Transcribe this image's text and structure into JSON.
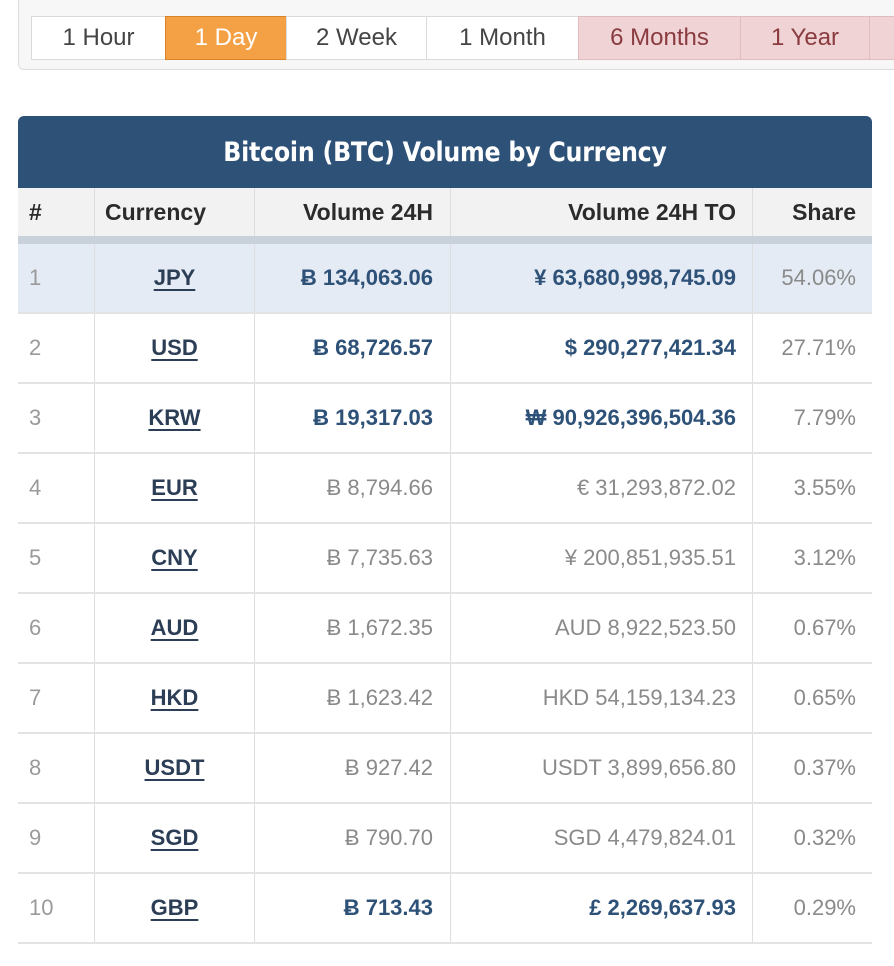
{
  "range_tabs": [
    {
      "label": "1 Hour",
      "state": "normal"
    },
    {
      "label": "1 Day",
      "state": "active"
    },
    {
      "label": "2 Week",
      "state": "normal"
    },
    {
      "label": "1 Month",
      "state": "normal"
    },
    {
      "label": "6 Months",
      "state": "disabled"
    },
    {
      "label": "1 Year",
      "state": "disabled"
    }
  ],
  "table": {
    "title": "Bitcoin (BTC) Volume by Currency",
    "headers": {
      "num": "#",
      "currency": "Currency",
      "volume": "Volume 24H",
      "volume_to": "Volume 24H TO",
      "share": "Share"
    },
    "rows": [
      {
        "num": "1",
        "currency": "JPY",
        "volume": "Ƀ 134,063.06",
        "volume_to": "¥ 63,680,998,745.09",
        "share": "54.06%",
        "emphasis": true,
        "highlight": true
      },
      {
        "num": "2",
        "currency": "USD",
        "volume": "Ƀ 68,726.57",
        "volume_to": "$ 290,277,421.34",
        "share": "27.71%",
        "emphasis": true,
        "highlight": false
      },
      {
        "num": "3",
        "currency": "KRW",
        "volume": "Ƀ 19,317.03",
        "volume_to": "₩ 90,926,396,504.36",
        "share": "7.79%",
        "emphasis": true,
        "highlight": false
      },
      {
        "num": "4",
        "currency": "EUR",
        "volume": "Ƀ 8,794.66",
        "volume_to": "€ 31,293,872.02",
        "share": "3.55%",
        "emphasis": false,
        "highlight": false
      },
      {
        "num": "5",
        "currency": "CNY",
        "volume": "Ƀ 7,735.63",
        "volume_to": "¥ 200,851,935.51",
        "share": "3.12%",
        "emphasis": false,
        "highlight": false
      },
      {
        "num": "6",
        "currency": "AUD",
        "volume": "Ƀ 1,672.35",
        "volume_to": "AUD 8,922,523.50",
        "share": "0.67%",
        "emphasis": false,
        "highlight": false
      },
      {
        "num": "7",
        "currency": "HKD",
        "volume": "Ƀ 1,623.42",
        "volume_to": "HKD 54,159,134.23",
        "share": "0.65%",
        "emphasis": false,
        "highlight": false
      },
      {
        "num": "8",
        "currency": "USDT",
        "volume": "Ƀ 927.42",
        "volume_to": "USDT 3,899,656.80",
        "share": "0.37%",
        "emphasis": false,
        "highlight": false
      },
      {
        "num": "9",
        "currency": "SGD",
        "volume": "Ƀ 790.70",
        "volume_to": "SGD 4,479,824.01",
        "share": "0.32%",
        "emphasis": false,
        "highlight": false
      },
      {
        "num": "10",
        "currency": "GBP",
        "volume": "Ƀ 713.43",
        "volume_to": "£ 2,269,637.93",
        "share": "0.29%",
        "emphasis": true,
        "highlight": false
      }
    ]
  },
  "colors": {
    "header_blue": "#2e5178",
    "active_tab": "#f4a045",
    "disabled_tab": "#efd3d5"
  }
}
